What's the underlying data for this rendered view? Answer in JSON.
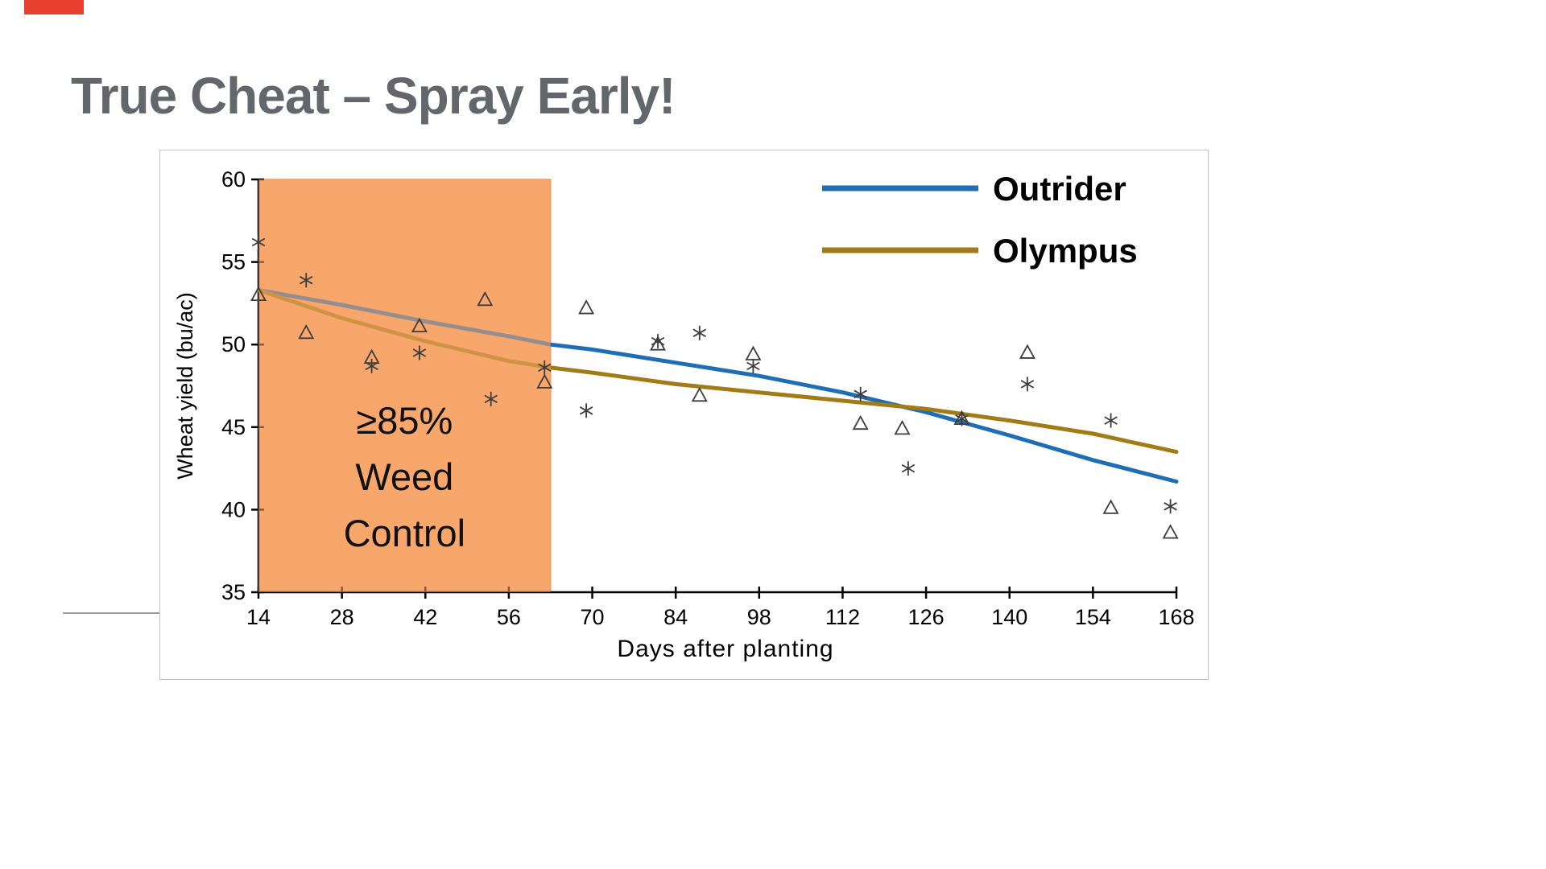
{
  "slide": {
    "title": "True Cheat – Spray Early!",
    "accent_color": "#e8402e"
  },
  "chart_data": {
    "type": "line",
    "title": "",
    "xlabel": "Days after planting",
    "ylabel": "Wheat yield (bu/ac)",
    "xlim": [
      14,
      168
    ],
    "ylim": [
      35,
      60
    ],
    "xticks": [
      14,
      28,
      42,
      56,
      70,
      84,
      98,
      112,
      126,
      140,
      154,
      168
    ],
    "yticks": [
      35,
      40,
      45,
      50,
      55,
      60
    ],
    "grid": false,
    "legend_position": "top-right",
    "legend": [
      {
        "name": "Outrider",
        "color": "#1f6eb5"
      },
      {
        "name": "Olympus",
        "color": "#a17b18"
      }
    ],
    "series": [
      {
        "name": "Outrider",
        "type": "line",
        "color": "#1f6eb5",
        "points": [
          [
            14,
            53.3
          ],
          [
            28,
            52.4
          ],
          [
            42,
            51.4
          ],
          [
            56,
            50.5
          ],
          [
            63,
            50.0
          ],
          [
            70,
            49.7
          ],
          [
            84,
            48.9
          ],
          [
            98,
            48.1
          ],
          [
            112,
            47.1
          ],
          [
            126,
            45.9
          ],
          [
            140,
            44.5
          ],
          [
            154,
            43.0
          ],
          [
            168,
            41.7
          ]
        ]
      },
      {
        "name": "Olympus",
        "type": "line",
        "color": "#a17b18",
        "points": [
          [
            14,
            53.3
          ],
          [
            28,
            51.6
          ],
          [
            42,
            50.2
          ],
          [
            56,
            49.0
          ],
          [
            63,
            48.6
          ],
          [
            70,
            48.3
          ],
          [
            84,
            47.6
          ],
          [
            98,
            47.1
          ],
          [
            112,
            46.6
          ],
          [
            126,
            46.1
          ],
          [
            140,
            45.4
          ],
          [
            154,
            44.6
          ],
          [
            168,
            43.5
          ]
        ]
      },
      {
        "name": "observations-asterisk",
        "type": "scatter",
        "marker": "asterisk",
        "color": "#3c3c3c",
        "points": [
          [
            14,
            56.2
          ],
          [
            22,
            53.9
          ],
          [
            33,
            48.7
          ],
          [
            41,
            49.5
          ],
          [
            53,
            46.7
          ],
          [
            62,
            48.6
          ],
          [
            69,
            46.0
          ],
          [
            81,
            50.2
          ],
          [
            88,
            50.7
          ],
          [
            97,
            48.7
          ],
          [
            115,
            47.0
          ],
          [
            123,
            42.5
          ],
          [
            132,
            45.5
          ],
          [
            143,
            47.6
          ],
          [
            157,
            45.4
          ],
          [
            167,
            40.2
          ]
        ]
      },
      {
        "name": "observations-triangle",
        "type": "scatter",
        "marker": "triangle",
        "color": "#3c3c3c",
        "points": [
          [
            14,
            53.0
          ],
          [
            22,
            50.7
          ],
          [
            33,
            49.2
          ],
          [
            41,
            51.1
          ],
          [
            52,
            52.7
          ],
          [
            62,
            47.7
          ],
          [
            69,
            52.2
          ],
          [
            81,
            50.0
          ],
          [
            88,
            46.9
          ],
          [
            97,
            49.4
          ],
          [
            115,
            45.2
          ],
          [
            122,
            44.9
          ],
          [
            132,
            45.5
          ],
          [
            143,
            49.5
          ],
          [
            157,
            40.1
          ],
          [
            167,
            38.6
          ]
        ]
      }
    ],
    "region": {
      "x_start": 14,
      "x_end": 63,
      "fill": "#f7a76b",
      "edge": "#eb9659",
      "label_lines": [
        "≥85%",
        "Weed",
        "Control"
      ]
    }
  }
}
